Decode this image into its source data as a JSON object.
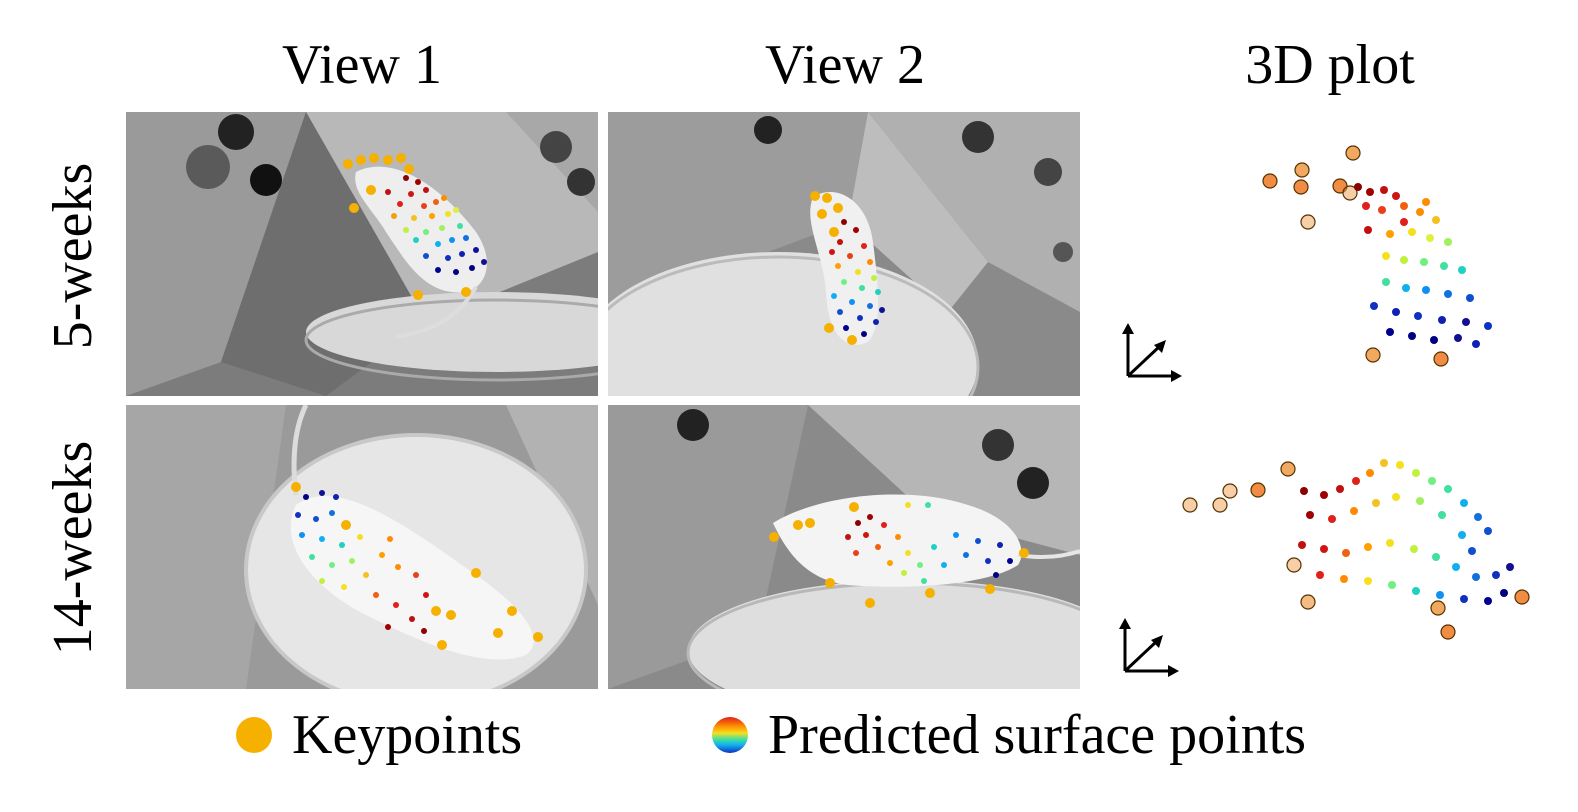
{
  "columns": {
    "view1": "View 1",
    "view2": "View 2",
    "plot3d": "3D plot"
  },
  "rows": {
    "row1": "5-weeks",
    "row2": "14-weeks"
  },
  "legend": {
    "keypoints": "Keypoints",
    "surface": "Predicted surface points"
  },
  "colors": {
    "keypoint": "#f5b000",
    "keypoint_3d": "#f0a050",
    "surface_colormap": [
      "#8b0000",
      "#e0201a",
      "#ff8c00",
      "#f5e020",
      "#40e0a0",
      "#10b0f0",
      "#1030c0",
      "#000080"
    ]
  },
  "panels": [
    {
      "row": "5-weeks",
      "view": "View 1",
      "content": "grayscale photo of mouse rearing on platform inside arena"
    },
    {
      "row": "5-weeks",
      "view": "View 2",
      "content": "grayscale photo of mouse rearing on platform inside arena"
    },
    {
      "row": "14-weeks",
      "view": "View 1",
      "content": "grayscale photo of mouse on platform inside arena"
    },
    {
      "row": "14-weeks",
      "view": "View 2",
      "content": "grayscale photo of mouse walking on platform inside arena"
    }
  ]
}
